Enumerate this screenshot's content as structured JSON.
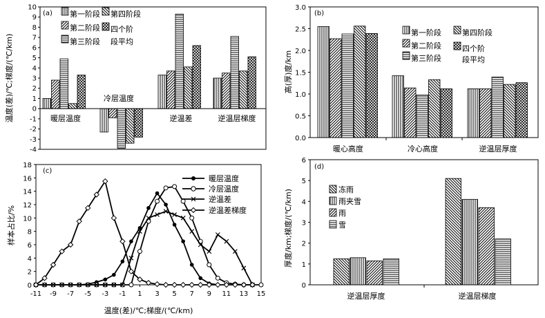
{
  "chart_data": [
    {
      "id": "a",
      "type": "bar",
      "panel_label": "(a)",
      "categories": [
        "暖层温度",
        "冷层温度",
        "逆温差",
        "逆温层梯度"
      ],
      "series": [
        {
          "name": "第一阶段",
          "values": [
            1.0,
            -2.3,
            3.3,
            3.0
          ]
        },
        {
          "name": "第二阶段",
          "values": [
            2.8,
            -0.9,
            3.7,
            3.5
          ]
        },
        {
          "name": "第三阶段",
          "values": [
            4.9,
            -3.9,
            9.3,
            7.1
          ]
        },
        {
          "name": "第四阶段",
          "values": [
            0.5,
            -3.4,
            4.1,
            3.7
          ]
        },
        {
          "name": "四个阶段平均",
          "values": [
            3.3,
            -2.8,
            6.2,
            5.1
          ]
        }
      ],
      "legend_labels": [
        "第一阶段",
        "第二阶段",
        "第三阶段",
        "第四阶段",
        "四个阶",
        "段平均"
      ],
      "ylabel": "温度(差)/℃;梯度/(℃/km)",
      "ylim": [
        -4,
        10
      ],
      "yticks": [
        "10",
        "9",
        "8",
        "7",
        "6",
        "5",
        "4",
        "3",
        "2",
        "1",
        "0",
        "-1",
        "-2",
        "-3",
        "-4"
      ]
    },
    {
      "id": "b",
      "type": "bar",
      "panel_label": "(b)",
      "categories": [
        "暖心高度",
        "冷心高度",
        "逆温层厚度"
      ],
      "series": [
        {
          "name": "第一阶段",
          "values": [
            2.55,
            1.42,
            1.12
          ]
        },
        {
          "name": "第二阶段",
          "values": [
            2.27,
            1.14,
            1.12
          ]
        },
        {
          "name": "第三阶段",
          "values": [
            2.38,
            0.98,
            1.39
          ]
        },
        {
          "name": "第四阶段",
          "values": [
            2.56,
            1.33,
            1.22
          ]
        },
        {
          "name": "四个阶段平均",
          "values": [
            2.39,
            1.12,
            1.26
          ]
        }
      ],
      "legend_labels": [
        "第一阶段",
        "第二阶段",
        "第三阶段",
        "第四阶段",
        "四个阶",
        "段平均"
      ],
      "ylabel": "高(厚)度/km",
      "ylim": [
        0,
        3
      ],
      "yticks": [
        "3.0",
        "2.5",
        "2.0",
        "1.5",
        "1.0",
        "0.5",
        "0.0"
      ]
    },
    {
      "id": "c",
      "type": "line",
      "panel_label": "(c)",
      "xlabel": "温度(差)/℃;梯度/(℃/km)",
      "ylabel": "样本占比/%",
      "xlim": [
        -11,
        15
      ],
      "ylim": [
        0,
        18
      ],
      "xticks": [
        "-11",
        "-9",
        "-7",
        "-5",
        "-3",
        "-1",
        "1",
        "3",
        "5",
        "7",
        "9",
        "11",
        "13",
        "15"
      ],
      "yticks": [
        "18",
        "16",
        "14",
        "12",
        "10",
        "8",
        "6",
        "4",
        "2",
        "0"
      ],
      "series": [
        {
          "name": "暖层温度",
          "marker": "filled-circle",
          "x": [
            -11,
            -10,
            -9,
            -8,
            -7,
            -6,
            -5,
            -4,
            -3,
            -2,
            -1,
            0,
            1,
            2,
            3,
            4,
            5,
            6,
            7,
            8,
            9,
            10
          ],
          "y": [
            0,
            0,
            0,
            0,
            0,
            0,
            0.1,
            0.4,
            0.8,
            1.5,
            3.5,
            6.5,
            8.5,
            11.5,
            13.7,
            12,
            9,
            6.5,
            3,
            1,
            0.2,
            0
          ]
        },
        {
          "name": "冷层温度",
          "marker": "open-circle",
          "x": [
            -11,
            -10,
            -9,
            -8,
            -7,
            -6,
            -5,
            -4,
            -3,
            -2,
            -1,
            0,
            1,
            2,
            3,
            4,
            5,
            6,
            7,
            8,
            9,
            10,
            11,
            12,
            13,
            14,
            15
          ],
          "y": [
            0,
            0,
            0,
            0,
            0,
            0,
            0,
            0,
            0,
            0,
            0,
            0,
            5,
            9.5,
            12.5,
            14.5,
            14.7,
            12.5,
            10,
            6.5,
            3,
            1,
            0.3,
            0.1,
            0,
            0,
            0
          ]
        },
        {
          "name": "逆温差",
          "marker": "x",
          "x": [
            -11,
            -10,
            -9,
            -8,
            -7,
            -6,
            -5,
            -4,
            -3,
            -2,
            -1,
            0,
            1,
            2,
            3,
            4,
            5,
            6,
            7,
            8,
            9,
            10,
            11,
            12,
            13,
            14
          ],
          "y": [
            0,
            0,
            0,
            0,
            0,
            0,
            0,
            0,
            0,
            0,
            0,
            4,
            8,
            10,
            10.5,
            11,
            10.5,
            10,
            8,
            6,
            5,
            7.5,
            6.5,
            5,
            2.5,
            0
          ]
        },
        {
          "name": "逆温差梯度",
          "marker": "open-diamond",
          "x": [
            -11,
            -10,
            -9,
            -8,
            -7,
            -6,
            -5,
            -4,
            -3,
            -2,
            -1,
            0,
            1,
            2,
            3,
            4,
            5,
            6,
            7,
            8,
            9,
            10,
            11,
            12,
            13,
            14
          ],
          "y": [
            0,
            1,
            3,
            5,
            6,
            9.5,
            11.5,
            13.5,
            15.5,
            10,
            6.5,
            2,
            0.8,
            0.3,
            0.1,
            0,
            0,
            0,
            0,
            0,
            0,
            0,
            0,
            0,
            0,
            0
          ]
        }
      ]
    },
    {
      "id": "d",
      "type": "bar",
      "panel_label": "(d)",
      "categories": [
        "逆温层厚度",
        "逆温层梯度"
      ],
      "series": [
        {
          "name": "冻雨",
          "values": [
            1.25,
            5.1
          ]
        },
        {
          "name": "雨夹雪",
          "values": [
            1.3,
            4.1
          ]
        },
        {
          "name": "雨",
          "values": [
            1.15,
            3.7
          ]
        },
        {
          "name": "雪",
          "values": [
            1.25,
            2.2
          ]
        }
      ],
      "ylabel": "厚度/km;梯度/(℃/km)",
      "ylim": [
        0,
        6
      ],
      "yticks": [
        "6",
        "5",
        "4",
        "3",
        "2",
        "1",
        "0"
      ]
    }
  ]
}
